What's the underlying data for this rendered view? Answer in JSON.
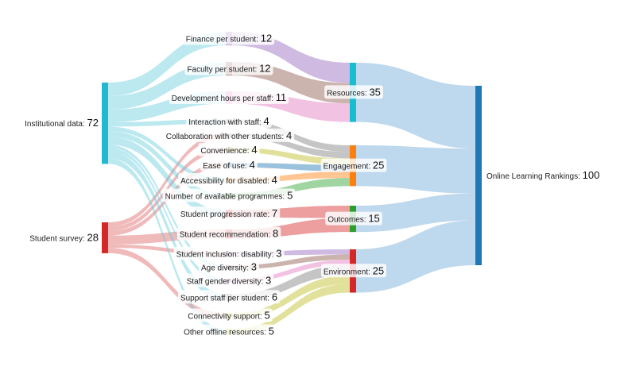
{
  "colors": {
    "institutional": "#22b8cf",
    "survey": "#d62728",
    "finance": "#9467bd",
    "faculty": "#8c564b",
    "development": "#e377c2",
    "resources": "#17becf",
    "engagement": "#ff7f0e",
    "outcomes": "#2ca02c",
    "environment": "#d62728",
    "rankings": "#1f77b4"
  },
  "sources": [
    {
      "id": "institutional",
      "label": "Institutional data",
      "value": "72"
    },
    {
      "id": "survey",
      "label": "Student survey",
      "value": "28"
    }
  ],
  "indicators": [
    {
      "id": "finance",
      "label": "Finance per student",
      "value": "12",
      "color": "#9467bd"
    },
    {
      "id": "faculty",
      "label": "Faculty per student",
      "value": "12",
      "color": "#8c564b"
    },
    {
      "id": "development",
      "label": "Development hours per staff",
      "value": "11",
      "color": "#e377c2"
    },
    {
      "id": "interaction",
      "label": "Interaction with staff",
      "value": "4",
      "color": "#7f7f7f"
    },
    {
      "id": "collaboration",
      "label": "Collaboration with other students",
      "value": "4",
      "color": "#7f7f7f"
    },
    {
      "id": "convenience",
      "label": "Convenience",
      "value": "4",
      "color": "#bcbd22"
    },
    {
      "id": "ease",
      "label": "Ease of use",
      "value": "4",
      "color": "#1f77b4"
    },
    {
      "id": "accessibility",
      "label": "Accessibility for disabled",
      "value": "4",
      "color": "#ff7f0e"
    },
    {
      "id": "programmes",
      "label": "Number of available programmes",
      "value": "5",
      "color": "#2ca02c"
    },
    {
      "id": "progression",
      "label": "Student progression rate",
      "value": "7",
      "color": "#d62728"
    },
    {
      "id": "recommendation",
      "label": "Student recommendation",
      "value": "8",
      "color": "#d62728"
    },
    {
      "id": "inclusion",
      "label": "Student inclusion: disability",
      "value": "3",
      "color": "#9467bd"
    },
    {
      "id": "age",
      "label": "Age diversity",
      "value": "3",
      "color": "#8c564b"
    },
    {
      "id": "gender",
      "label": "Staff gender diversity",
      "value": "3",
      "color": "#e377c2"
    },
    {
      "id": "support",
      "label": "Support staff per student",
      "value": "6",
      "color": "#7f7f7f"
    },
    {
      "id": "connectivity",
      "label": "Connectivity support",
      "value": "5",
      "color": "#bcbd22"
    },
    {
      "id": "offline",
      "label": "Other offline resources",
      "value": "5",
      "color": "#bcbd22"
    }
  ],
  "pillars": [
    {
      "id": "resources",
      "label": "Resources",
      "value": "35"
    },
    {
      "id": "engagement",
      "label": "Engagement",
      "value": "25"
    },
    {
      "id": "outcomes",
      "label": "Outcomes",
      "value": "15"
    },
    {
      "id": "environment",
      "label": "Environment",
      "value": "25"
    }
  ],
  "target": {
    "id": "rankings",
    "label": "Online Learning Rankings",
    "value": "100"
  },
  "flows": [
    {
      "from": "institutional",
      "to": "finance",
      "value": 12
    },
    {
      "from": "institutional",
      "to": "faculty",
      "value": 12
    },
    {
      "from": "institutional",
      "to": "development",
      "value": 11
    },
    {
      "from": "institutional",
      "to": "interaction",
      "value": 4
    },
    {
      "from": "survey",
      "to": "collaboration",
      "value": 4
    },
    {
      "from": "survey",
      "to": "convenience",
      "value": 4
    },
    {
      "from": "survey",
      "to": "ease",
      "value": 4
    },
    {
      "from": "institutional",
      "to": "accessibility",
      "value": 4
    },
    {
      "from": "institutional",
      "to": "programmes",
      "value": 5
    },
    {
      "from": "institutional",
      "to": "progression",
      "value": 7
    },
    {
      "from": "survey",
      "to": "recommendation",
      "value": 8
    },
    {
      "from": "survey",
      "to": "inclusion",
      "value": 3
    },
    {
      "from": "institutional",
      "to": "age",
      "value": 3
    },
    {
      "from": "institutional",
      "to": "gender",
      "value": 3
    },
    {
      "from": "institutional",
      "to": "support",
      "value": 6
    },
    {
      "from": "survey",
      "to": "connectivity",
      "value": 5
    },
    {
      "from": "institutional",
      "to": "offline",
      "value": 5
    },
    {
      "from": "finance",
      "to": "resources",
      "value": 12
    },
    {
      "from": "faculty",
      "to": "resources",
      "value": 12
    },
    {
      "from": "development",
      "to": "resources",
      "value": 11
    },
    {
      "from": "interaction",
      "to": "engagement",
      "value": 4
    },
    {
      "from": "collaboration",
      "to": "engagement",
      "value": 4
    },
    {
      "from": "convenience",
      "to": "engagement",
      "value": 4
    },
    {
      "from": "ease",
      "to": "engagement",
      "value": 4
    },
    {
      "from": "accessibility",
      "to": "engagement",
      "value": 4
    },
    {
      "from": "programmes",
      "to": "engagement",
      "value": 5
    },
    {
      "from": "progression",
      "to": "outcomes",
      "value": 7
    },
    {
      "from": "recommendation",
      "to": "outcomes",
      "value": 8
    },
    {
      "from": "inclusion",
      "to": "environment",
      "value": 3
    },
    {
      "from": "age",
      "to": "environment",
      "value": 3
    },
    {
      "from": "gender",
      "to": "environment",
      "value": 3
    },
    {
      "from": "support",
      "to": "environment",
      "value": 6
    },
    {
      "from": "connectivity",
      "to": "environment",
      "value": 5
    },
    {
      "from": "offline",
      "to": "environment",
      "value": 5
    },
    {
      "from": "resources",
      "to": "rankings",
      "value": 35
    },
    {
      "from": "engagement",
      "to": "rankings",
      "value": 25
    },
    {
      "from": "outcomes",
      "to": "rankings",
      "value": 15
    },
    {
      "from": "environment",
      "to": "rankings",
      "value": 25
    }
  ]
}
